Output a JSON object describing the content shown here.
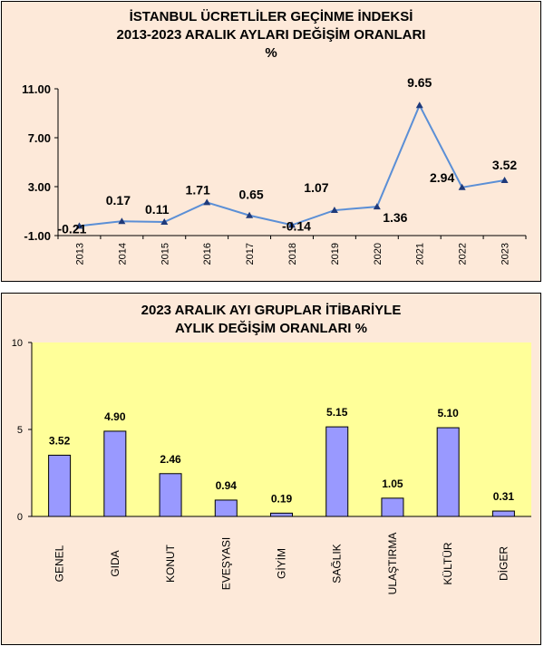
{
  "chart_data": [
    {
      "type": "line",
      "title_lines": [
        "İSTANBUL ÜCRETLİLER GEÇİNME İNDEKSİ",
        "2013-2023  ARALIK  AYLARI  DEĞİŞİM  ORANLARI",
        "%"
      ],
      "categories": [
        "2013",
        "2014",
        "2015",
        "2016",
        "2017",
        "2018",
        "2019",
        "2020",
        "2021",
        "2022",
        "2023"
      ],
      "values": [
        -0.21,
        0.17,
        0.11,
        1.71,
        0.65,
        -0.14,
        1.07,
        1.36,
        9.65,
        2.94,
        3.52
      ],
      "data_labels": [
        "-0.21",
        "0.17",
        "0.11",
        "1.71",
        "0.65",
        "-0.14",
        "1.07",
        "1.36",
        "9.65",
        "2.94",
        "3.52"
      ],
      "yticks": [
        "11.00",
        "7.00",
        "3.00",
        "-1.00"
      ],
      "ytick_values": [
        11,
        7,
        3,
        -1
      ],
      "ylim": [
        -1,
        11
      ],
      "line_color": "#5b8fd6",
      "marker_color": "#1f3a7a",
      "grid": false
    },
    {
      "type": "bar",
      "title_lines": [
        "2023 ARALIK  AYI  GRUPLAR İTİBARİYLE",
        "AYLIK DEĞİŞİM  ORANLARI  %"
      ],
      "categories": [
        "GENEL",
        "GIDA",
        "KONUT",
        "EVEŞYASI",
        "GİYİM",
        "SAĞLIK",
        "ULAŞTIRMA",
        "KÜLTÜR",
        "DİGER"
      ],
      "values": [
        3.52,
        4.9,
        2.46,
        0.94,
        0.19,
        5.15,
        1.05,
        5.1,
        0.31
      ],
      "data_labels": [
        "3.52",
        "4.90",
        "2.46",
        "0.94",
        "0.19",
        "5.15",
        "1.05",
        "5.10",
        "0.31"
      ],
      "yticks": [
        "10",
        "5",
        "0"
      ],
      "ytick_values": [
        10,
        5,
        0
      ],
      "ylim": [
        0,
        10
      ],
      "bar_color": "#9999ff",
      "plot_bg": "#ffff99",
      "grid": false
    }
  ]
}
